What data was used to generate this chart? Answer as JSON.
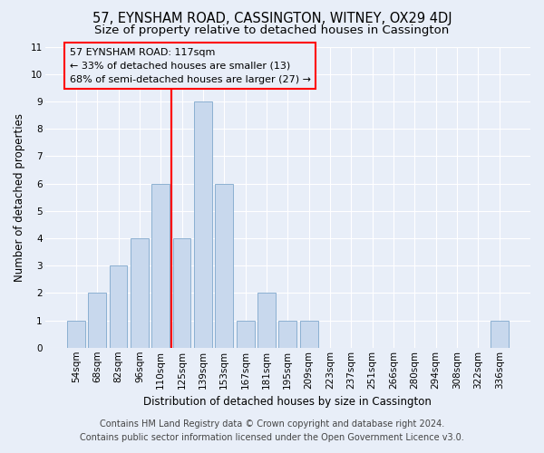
{
  "title": "57, EYNSHAM ROAD, CASSINGTON, WITNEY, OX29 4DJ",
  "subtitle": "Size of property relative to detached houses in Cassington",
  "xlabel": "Distribution of detached houses by size in Cassington",
  "ylabel": "Number of detached properties",
  "categories": [
    "54sqm",
    "68sqm",
    "82sqm",
    "96sqm",
    "110sqm",
    "125sqm",
    "139sqm",
    "153sqm",
    "167sqm",
    "181sqm",
    "195sqm",
    "209sqm",
    "223sqm",
    "237sqm",
    "251sqm",
    "266sqm",
    "280sqm",
    "294sqm",
    "308sqm",
    "322sqm",
    "336sqm"
  ],
  "values": [
    1,
    2,
    3,
    4,
    6,
    4,
    9,
    6,
    1,
    2,
    1,
    1,
    0,
    0,
    0,
    0,
    0,
    0,
    0,
    0,
    1
  ],
  "bar_color": "#c8d8ed",
  "bar_edge_color": "#7fa8cc",
  "red_line_x": 4.5,
  "annotation_line1": "57 EYNSHAM ROAD: 117sqm",
  "annotation_line2": "← 33% of detached houses are smaller (13)",
  "annotation_line3": "68% of semi-detached houses are larger (27) →",
  "footnote1": "Contains HM Land Registry data © Crown copyright and database right 2024.",
  "footnote2": "Contains public sector information licensed under the Open Government Licence v3.0.",
  "ylim": [
    0,
    11
  ],
  "yticks": [
    0,
    1,
    2,
    3,
    4,
    5,
    6,
    7,
    8,
    9,
    10,
    11
  ],
  "bg_color": "#e8eef8",
  "plot_bg_color": "#e8eef8",
  "grid_color": "#ffffff",
  "title_fontsize": 10.5,
  "subtitle_fontsize": 9.5,
  "axis_label_fontsize": 8.5,
  "tick_fontsize": 7.5,
  "annotation_fontsize": 8,
  "footnote_fontsize": 7
}
